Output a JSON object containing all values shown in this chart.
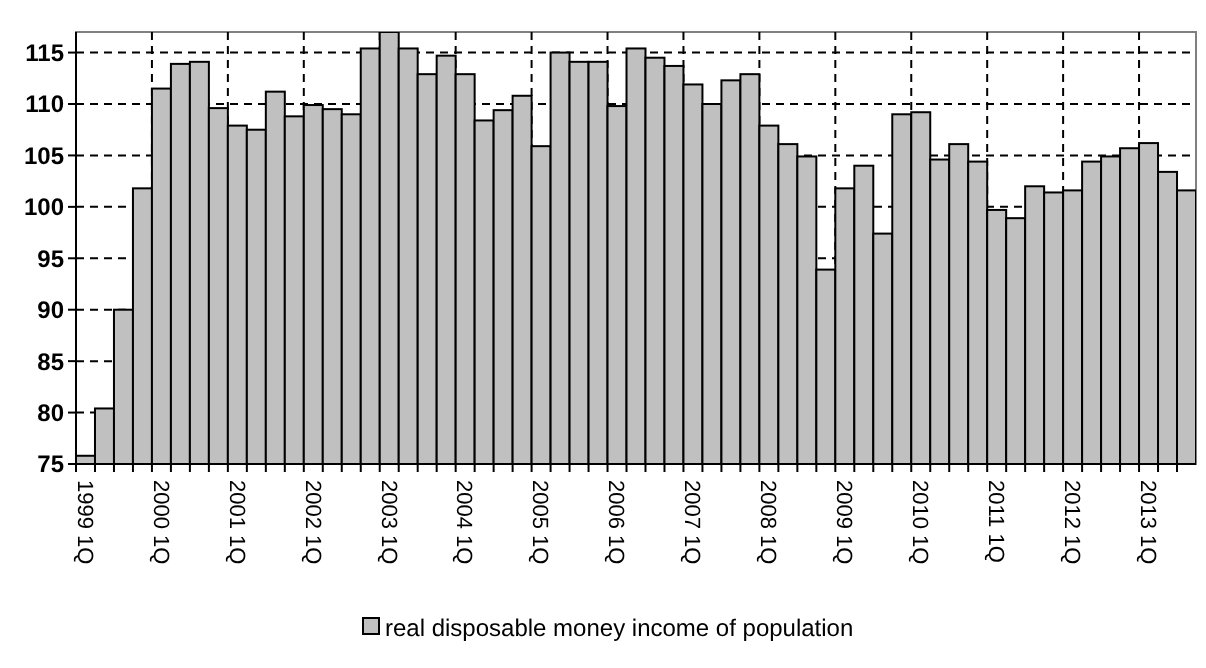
{
  "chart_data": {
    "type": "bar",
    "categories": [
      "1999 1Q",
      null,
      null,
      null,
      "2000 1Q",
      null,
      null,
      null,
      "2001 1Q",
      null,
      null,
      null,
      "2002 1Q",
      null,
      null,
      null,
      "2003 1Q",
      null,
      null,
      null,
      "2004 1Q",
      null,
      null,
      null,
      "2005 1Q",
      null,
      null,
      null,
      "2006 1Q",
      null,
      null,
      null,
      "2007 1Q",
      null,
      null,
      null,
      "2008 1Q",
      null,
      null,
      null,
      "2009 1Q",
      null,
      null,
      null,
      "2010 1Q",
      null,
      null,
      null,
      "2011 1Q",
      null,
      null,
      null,
      "2012 1Q",
      null,
      null,
      null,
      "2013 1Q",
      null,
      null
    ],
    "series": [
      {
        "name": "real disposable money income of population",
        "color": "#c0c0c0",
        "values": [
          75.8,
          80.4,
          90.0,
          101.8,
          111.5,
          113.9,
          114.1,
          109.6,
          107.9,
          107.5,
          111.2,
          108.8,
          109.9,
          109.5,
          109.0,
          115.4,
          117,
          115.4,
          112.9,
          114.7,
          112.9,
          108.4,
          109.4,
          110.8,
          105.9,
          115.0,
          114.1,
          114.1,
          109.8,
          115.4,
          114.5,
          113.7,
          111.9,
          110.0,
          112.3,
          112.9,
          107.9,
          106.1,
          104.9,
          93.9,
          101.8,
          104.0,
          97.4,
          109.0,
          109.2,
          104.6,
          106.1,
          104.4,
          99.7,
          98.9,
          102.0,
          101.4,
          101.6,
          104.4,
          104.9,
          105.7,
          106.2,
          103.4,
          101.6
        ]
      }
    ],
    "ylim": [
      75,
      117
    ],
    "yticks": [
      75,
      80,
      85,
      90,
      95,
      100,
      105,
      110,
      115
    ],
    "grid": true,
    "legend": "bottom"
  }
}
